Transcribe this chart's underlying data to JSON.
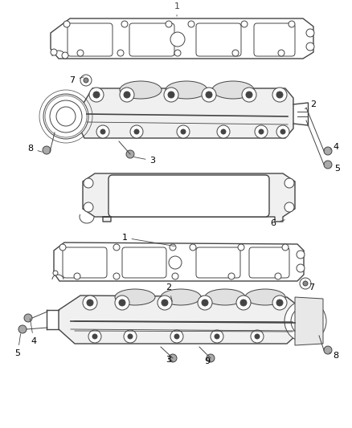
{
  "bg_color": "#ffffff",
  "line_color": "#444444",
  "label_color": "#000000",
  "fig_width": 4.38,
  "fig_height": 5.33,
  "dpi": 100
}
